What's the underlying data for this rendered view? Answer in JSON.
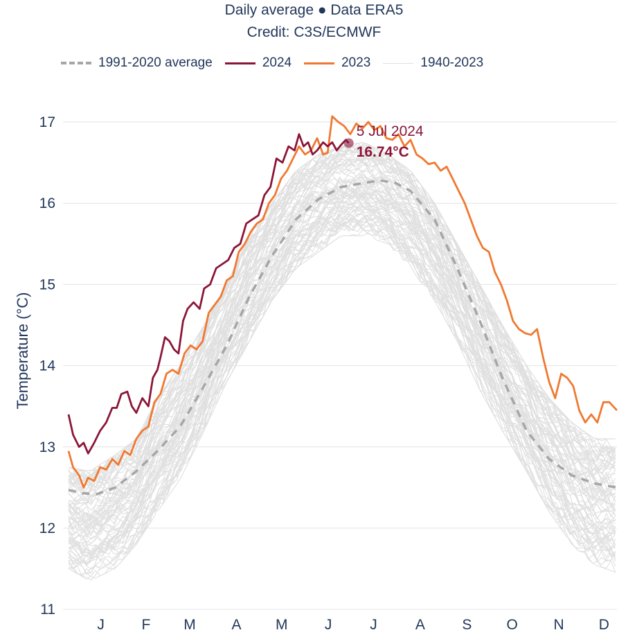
{
  "header": {
    "line1": "Daily average ● Data ERA5",
    "line2": "Credit: C3S/ECMWF"
  },
  "legend": [
    {
      "label": "1991-2020 average",
      "color": "#a6a6a6",
      "style": "dashed"
    },
    {
      "label": "2024",
      "color": "#8b1537",
      "style": "solid"
    },
    {
      "label": "2023",
      "color": "#f07830",
      "style": "solid"
    },
    {
      "label": "1940-2023",
      "color": "#e0e0e0",
      "style": "thin"
    }
  ],
  "annotation": {
    "date": "5 Jul 2024",
    "value": "16.74°C"
  },
  "chart_data": {
    "type": "line",
    "title": "Daily average ● Data ERA5",
    "subtitle": "Credit: C3S/ECMWF",
    "xlabel": "",
    "ylabel": "Temperature (°C)",
    "ylim": [
      11,
      17.2
    ],
    "xlim_day_of_year": [
      1,
      365
    ],
    "yticks": [
      11,
      12,
      13,
      14,
      15,
      16,
      17
    ],
    "xtick_labels": [
      "J",
      "F",
      "M",
      "A",
      "M",
      "J",
      "J",
      "A",
      "S",
      "O",
      "N",
      "D"
    ],
    "xtick_days": [
      16,
      46,
      75,
      106,
      136,
      167,
      197,
      228,
      259,
      289,
      320,
      350
    ],
    "grid": true,
    "legend_position": "top",
    "series": [
      {
        "name": "1940-2023",
        "kind": "envelope",
        "day": [
          1,
          15,
          32,
          46,
          60,
          75,
          91,
          106,
          121,
          136,
          152,
          167,
          182,
          197,
          213,
          228,
          244,
          259,
          274,
          289,
          305,
          320,
          335,
          350,
          365
        ],
        "low": [
          11.5,
          11.35,
          11.5,
          11.8,
          12.2,
          12.6,
          13.2,
          13.8,
          14.3,
          14.8,
          15.2,
          15.4,
          15.6,
          15.6,
          15.5,
          15.2,
          14.8,
          14.3,
          13.7,
          13.2,
          12.7,
          12.2,
          11.8,
          11.55,
          11.45
        ],
        "high": [
          12.75,
          12.7,
          12.9,
          13.1,
          13.6,
          14.0,
          14.5,
          15.0,
          15.6,
          16.0,
          16.4,
          16.6,
          16.7,
          16.75,
          16.6,
          16.4,
          16.0,
          15.5,
          15.0,
          14.5,
          14.0,
          13.6,
          13.3,
          13.1,
          13.1
        ]
      },
      {
        "name": "1991-2020 average",
        "day": [
          1,
          10,
          20,
          32,
          46,
          60,
          75,
          91,
          106,
          121,
          136,
          152,
          167,
          182,
          197,
          208,
          218,
          228,
          244,
          259,
          274,
          289,
          305,
          320,
          335,
          350,
          365
        ],
        "values": [
          12.47,
          12.43,
          12.42,
          12.5,
          12.7,
          12.95,
          13.25,
          13.75,
          14.25,
          14.85,
          15.35,
          15.8,
          16.05,
          16.2,
          16.25,
          16.28,
          16.25,
          16.15,
          15.8,
          15.2,
          14.55,
          13.85,
          13.2,
          12.85,
          12.65,
          12.55,
          12.5
        ]
      },
      {
        "name": "2024",
        "day": [
          1,
          4,
          8,
          11,
          14,
          18,
          22,
          26,
          30,
          33,
          36,
          40,
          43,
          46,
          50,
          54,
          57,
          60,
          62,
          65,
          68,
          71,
          74,
          77,
          80,
          84,
          88,
          91,
          95,
          99,
          103,
          107,
          111,
          115,
          119,
          123,
          127,
          131,
          135,
          139,
          143,
          147,
          151,
          154,
          157,
          160,
          163,
          166,
          170,
          173,
          176,
          179,
          182,
          185,
          187
        ],
        "values": [
          13.4,
          13.15,
          13.0,
          13.05,
          12.92,
          13.05,
          13.2,
          13.3,
          13.48,
          13.48,
          13.65,
          13.68,
          13.5,
          13.42,
          13.6,
          13.5,
          13.85,
          13.95,
          14.1,
          14.35,
          14.3,
          14.2,
          14.15,
          14.55,
          14.7,
          14.78,
          14.7,
          14.95,
          15.0,
          15.2,
          15.25,
          15.3,
          15.45,
          15.5,
          15.75,
          15.8,
          15.85,
          16.1,
          16.2,
          16.55,
          16.5,
          16.7,
          16.65,
          16.85,
          16.7,
          16.75,
          16.6,
          16.65,
          16.75,
          16.7,
          16.75,
          16.65,
          16.72,
          16.78,
          16.74
        ]
      },
      {
        "name": "2023",
        "day": [
          1,
          4,
          8,
          11,
          14,
          18,
          22,
          26,
          30,
          34,
          38,
          42,
          46,
          50,
          54,
          58,
          62,
          66,
          70,
          74,
          78,
          82,
          86,
          90,
          94,
          98,
          102,
          106,
          110,
          114,
          118,
          122,
          126,
          130,
          134,
          138,
          142,
          146,
          150,
          154,
          158,
          162,
          166,
          170,
          173,
          176,
          180,
          184,
          188,
          192,
          196,
          200,
          204,
          208,
          212,
          216,
          220,
          224,
          228,
          232,
          236,
          240,
          244,
          248,
          252,
          256,
          260,
          264,
          268,
          272,
          276,
          280,
          284,
          288,
          292,
          296,
          300,
          304,
          308,
          312,
          316,
          320,
          324,
          328,
          332,
          336,
          340,
          344,
          348,
          352,
          356,
          360,
          365
        ],
        "values": [
          12.95,
          12.75,
          12.65,
          12.5,
          12.62,
          12.58,
          12.75,
          12.72,
          12.85,
          12.78,
          12.95,
          12.9,
          13.1,
          13.2,
          13.25,
          13.55,
          13.65,
          13.9,
          13.95,
          13.9,
          14.15,
          14.25,
          14.2,
          14.3,
          14.65,
          14.75,
          14.85,
          15.05,
          15.1,
          15.4,
          15.5,
          15.65,
          15.75,
          15.8,
          16.0,
          16.1,
          16.3,
          16.4,
          16.55,
          16.7,
          16.6,
          16.65,
          16.8,
          16.6,
          16.62,
          17.07,
          17.0,
          16.95,
          16.85,
          16.98,
          16.92,
          17.0,
          16.9,
          16.95,
          16.8,
          16.78,
          16.85,
          16.7,
          16.78,
          16.6,
          16.55,
          16.48,
          16.5,
          16.4,
          16.45,
          16.3,
          16.15,
          16.0,
          15.8,
          15.6,
          15.45,
          15.4,
          15.15,
          15.0,
          14.8,
          14.55,
          14.45,
          14.4,
          14.38,
          14.45,
          14.1,
          13.8,
          13.6,
          13.9,
          13.85,
          13.75,
          13.45,
          13.3,
          13.4,
          13.3,
          13.55,
          13.55,
          13.45
        ]
      }
    ],
    "annotations": [
      {
        "day": 187,
        "value": 16.74,
        "label": "5 Jul 2024",
        "value_label": "16.74°C",
        "series": "2024"
      }
    ]
  }
}
